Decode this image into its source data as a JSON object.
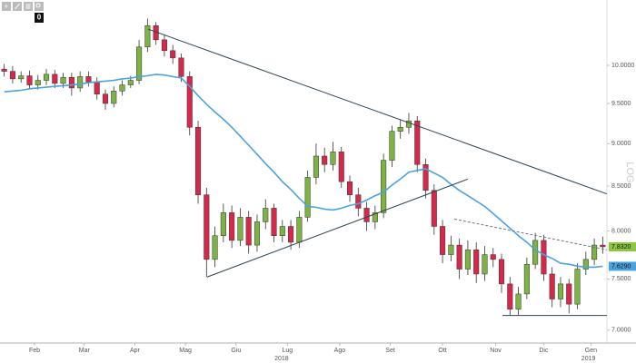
{
  "toolbar": {
    "badge": "0"
  },
  "chart_data": {
    "type": "candlestick",
    "log_scale": true,
    "log_label": "LOG",
    "ylim": [
      6.88,
      10.92
    ],
    "yticks": [
      {
        "value": 7,
        "label": "7.0000"
      },
      {
        "value": 7.5,
        "label": "7.5000"
      },
      {
        "value": 8,
        "label": "8.0000"
      },
      {
        "value": 8.5,
        "label": "8.5000"
      },
      {
        "value": 9,
        "label": "9.0000"
      },
      {
        "value": 9.5,
        "label": "9.5000"
      },
      {
        "value": 10,
        "label": "10.0000"
      }
    ],
    "xlim": [
      -0.5,
      71.5
    ],
    "xticks": [
      {
        "value": 3.6,
        "label": "Feb"
      },
      {
        "value": 9.5,
        "label": "Mar"
      },
      {
        "value": 15.5,
        "label": "Apr"
      },
      {
        "value": 21.5,
        "label": "Mag"
      },
      {
        "value": 27.5,
        "label": "Giu"
      },
      {
        "value": 33.6,
        "label": "Lug"
      },
      {
        "value": 39.8,
        "label": "Ago"
      },
      {
        "value": 45.8,
        "label": "Set"
      },
      {
        "value": 52.0,
        "label": "Ott"
      },
      {
        "value": 58.3,
        "label": "Nov"
      },
      {
        "value": 64.0,
        "label": "Dic"
      },
      {
        "value": 69.6,
        "label": "Gen"
      }
    ],
    "year_ticks": [
      {
        "value": 32.9,
        "label": "2018"
      },
      {
        "value": 69.3,
        "label": "2019"
      }
    ],
    "up_color": "#7cb342",
    "down_color": "#d6284b",
    "open": [
      9.95,
      9.92,
      9.82,
      9.86,
      9.74,
      9.8,
      9.88,
      9.76,
      9.84,
      9.7,
      9.85,
      9.78,
      9.62,
      9.5,
      9.66,
      9.74,
      9.8,
      10.25,
      10.55,
      10.35,
      10.2,
      10.1,
      9.85,
      9.2,
      8.4,
      7.7,
      7.95,
      8.2,
      7.9,
      8.15,
      7.85,
      8.1,
      8.25,
      7.95,
      8.05,
      7.88,
      8.15,
      8.6,
      8.85,
      8.75,
      8.9,
      8.55,
      8.4,
      8.25,
      8.1,
      8.2,
      8.8,
      9.15,
      9.2,
      9.28,
      8.75,
      8.45,
      8.05,
      7.75,
      7.85,
      7.6,
      7.8,
      7.55,
      7.75,
      7.7,
      7.45,
      7.2,
      7.35,
      7.65,
      7.9,
      7.55,
      7.3,
      7.45,
      7.25,
      7.6,
      7.7,
      7.85
    ],
    "high": [
      10.02,
      9.99,
      9.92,
      9.93,
      9.87,
      9.95,
      9.94,
      9.9,
      9.9,
      9.92,
      9.92,
      9.84,
      9.68,
      9.72,
      9.8,
      9.86,
      10.35,
      10.65,
      10.6,
      10.42,
      10.28,
      10.16,
      9.92,
      9.28,
      8.48,
      8.05,
      8.3,
      8.28,
      8.25,
      8.22,
      8.18,
      8.35,
      8.3,
      8.12,
      8.12,
      8.22,
      8.68,
      9.0,
      8.95,
      9.02,
      8.96,
      8.62,
      8.48,
      8.32,
      8.28,
      8.88,
      9.22,
      9.3,
      9.38,
      9.34,
      8.82,
      8.52,
      8.12,
      7.95,
      7.92,
      7.9,
      7.88,
      7.84,
      7.82,
      7.76,
      7.52,
      7.42,
      7.72,
      7.98,
      7.96,
      7.62,
      7.52,
      7.5,
      7.66,
      7.78,
      7.92,
      7.94
    ],
    "low": [
      9.85,
      9.76,
      9.77,
      9.68,
      9.68,
      9.74,
      9.7,
      9.7,
      9.6,
      9.65,
      9.72,
      9.55,
      9.42,
      9.45,
      9.6,
      9.7,
      9.75,
      10.18,
      10.28,
      10.12,
      10.02,
      9.78,
      9.1,
      8.3,
      7.52,
      7.62,
      7.88,
      7.82,
      7.84,
      7.76,
      7.78,
      8.02,
      7.88,
      7.88,
      7.8,
      7.82,
      8.1,
      8.52,
      8.66,
      8.68,
      8.48,
      8.32,
      8.16,
      8.0,
      8.02,
      8.14,
      8.72,
      9.06,
      9.12,
      8.66,
      8.36,
      7.96,
      7.66,
      7.68,
      7.5,
      7.54,
      7.46,
      7.48,
      7.62,
      7.36,
      7.14,
      7.14,
      7.3,
      7.6,
      7.48,
      7.22,
      7.22,
      7.16,
      7.2,
      7.54,
      7.64,
      7.76
    ],
    "close": [
      9.92,
      9.82,
      9.86,
      9.74,
      9.8,
      9.88,
      9.76,
      9.84,
      9.7,
      9.85,
      9.78,
      9.62,
      9.5,
      9.66,
      9.74,
      9.8,
      10.25,
      10.55,
      10.35,
      10.2,
      10.1,
      9.85,
      9.2,
      8.4,
      7.7,
      7.95,
      8.2,
      7.9,
      8.15,
      7.85,
      8.1,
      8.25,
      7.95,
      8.05,
      7.88,
      8.15,
      8.6,
      8.85,
      8.75,
      8.9,
      8.55,
      8.4,
      8.25,
      8.1,
      8.2,
      8.8,
      9.15,
      9.2,
      9.28,
      8.75,
      8.45,
      8.05,
      7.75,
      7.85,
      7.6,
      7.8,
      7.55,
      7.75,
      7.7,
      7.45,
      7.2,
      7.35,
      7.65,
      7.9,
      7.55,
      7.3,
      7.45,
      7.25,
      7.6,
      7.7,
      7.85,
      7.832
    ],
    "moving_average": {
      "color": "#4aa3df",
      "values": [
        9.65,
        9.66,
        9.67,
        9.69,
        9.7,
        9.71,
        9.72,
        9.73,
        9.74,
        9.75,
        9.77,
        9.78,
        9.79,
        9.8,
        9.82,
        9.83,
        9.85,
        9.86,
        9.88,
        9.87,
        9.85,
        9.83,
        9.72,
        9.6,
        9.49,
        9.39,
        9.3,
        9.2,
        9.09,
        8.98,
        8.87,
        8.76,
        8.66,
        8.55,
        8.46,
        8.36,
        8.27,
        8.26,
        8.24,
        8.23,
        8.25,
        8.28,
        8.3,
        8.34,
        8.39,
        8.43,
        8.51,
        8.58,
        8.66,
        8.68,
        8.7,
        8.65,
        8.6,
        8.52,
        8.45,
        8.39,
        8.33,
        8.27,
        8.19,
        8.11,
        8.03,
        7.95,
        7.88,
        7.8,
        7.75,
        7.71,
        7.66,
        7.65,
        7.63,
        7.62,
        7.62,
        7.629
      ]
    },
    "trendlines": [
      {
        "x": [
          17.07,
          71.5
        ],
        "y": [
          10.5,
          8.41
        ],
        "color": "#2f4454",
        "dashed": false
      },
      {
        "x": [
          24.07,
          55.0
        ],
        "y": [
          7.52,
          8.58
        ],
        "color": "#2f4454",
        "dashed": false
      },
      {
        "x": [
          53.4,
          71.5
        ],
        "y": [
          8.13,
          7.8
        ],
        "color": "#6a7a88",
        "dashed": true
      },
      {
        "x": [
          59.1,
          71.5
        ],
        "y": [
          7.14,
          7.14
        ],
        "color": "#2f4454",
        "dashed": false
      }
    ],
    "price_tags": [
      {
        "value": 7.832,
        "label": "7.8320",
        "color": "#8dc63f"
      },
      {
        "value": 7.629,
        "label": "7.6290",
        "color": "#4aa3df"
      }
    ]
  }
}
